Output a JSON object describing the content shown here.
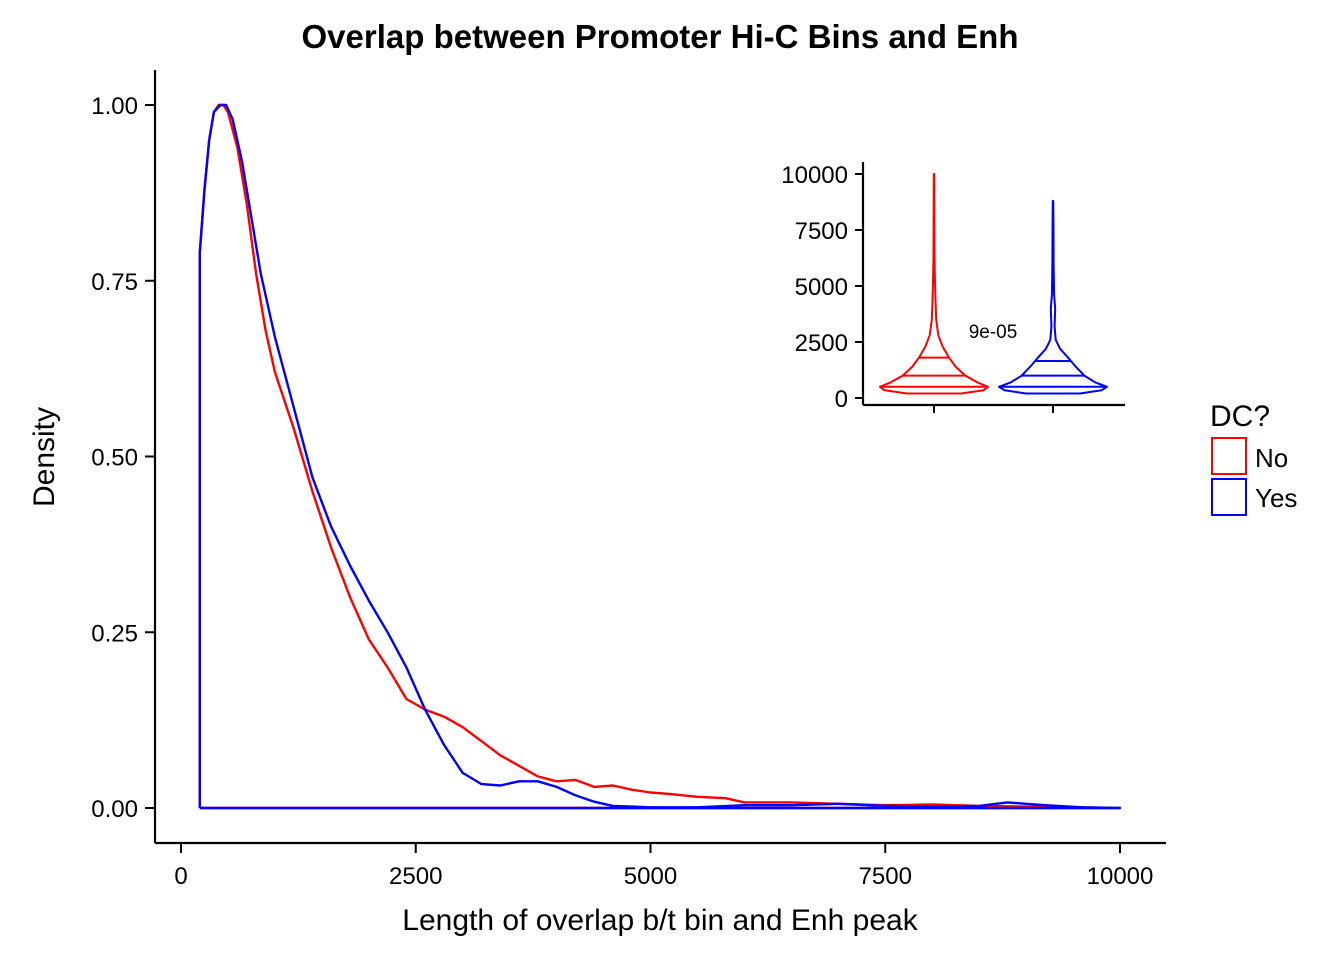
{
  "chart_data": [
    {
      "type": "line",
      "title": "Overlap between Promoter Hi-C Bins and Enh",
      "xlabel": "Length of overlap b/t bin and Enh peak",
      "ylabel": "Density",
      "xlim": [
        0,
        10000
      ],
      "ylim": [
        0,
        1.0
      ],
      "x_ticks": [
        "0",
        "2500",
        "5000",
        "7500",
        "10000"
      ],
      "y_ticks": [
        "0.00",
        "0.25",
        "0.50",
        "0.75",
        "1.00"
      ],
      "x_tick_values": [
        0,
        2500,
        5000,
        7500,
        10000
      ],
      "y_tick_values": [
        0,
        0.25,
        0.5,
        0.75,
        1.0
      ],
      "grid": false,
      "legend": {
        "title": "DC?",
        "placement": "right",
        "entries": [
          {
            "label": "No",
            "color": "#ff0000"
          },
          {
            "label": "Yes",
            "color": "#0000ff"
          }
        ]
      },
      "series": [
        {
          "name": "No",
          "color": "#ff0000",
          "points": [
            [
              200,
              0
            ],
            [
              200,
              0.79
            ],
            [
              250,
              0.88
            ],
            [
              300,
              0.95
            ],
            [
              350,
              0.99
            ],
            [
              400,
              1.0
            ],
            [
              450,
              1.0
            ],
            [
              500,
              0.99
            ],
            [
              600,
              0.94
            ],
            [
              700,
              0.86
            ],
            [
              800,
              0.76
            ],
            [
              900,
              0.68
            ],
            [
              1000,
              0.62
            ],
            [
              1200,
              0.54
            ],
            [
              1400,
              0.45
            ],
            [
              1600,
              0.37
            ],
            [
              1800,
              0.3
            ],
            [
              2000,
              0.24
            ],
            [
              2200,
              0.2
            ],
            [
              2400,
              0.155
            ],
            [
              2600,
              0.14
            ],
            [
              2800,
              0.13
            ],
            [
              3000,
              0.115
            ],
            [
              3200,
              0.095
            ],
            [
              3400,
              0.075
            ],
            [
              3600,
              0.06
            ],
            [
              3800,
              0.045
            ],
            [
              4000,
              0.038
            ],
            [
              4200,
              0.04
            ],
            [
              4400,
              0.03
            ],
            [
              4600,
              0.032
            ],
            [
              4800,
              0.026
            ],
            [
              5000,
              0.022
            ],
            [
              5200,
              0.02
            ],
            [
              5500,
              0.016
            ],
            [
              5800,
              0.014
            ],
            [
              6000,
              0.008
            ],
            [
              6500,
              0.008
            ],
            [
              7000,
              0.006
            ],
            [
              7500,
              0.004
            ],
            [
              8000,
              0.005
            ],
            [
              8500,
              0.003
            ],
            [
              9000,
              0.002
            ],
            [
              9500,
              0.001
            ],
            [
              10000,
              0.0
            ],
            [
              200,
              0.0
            ]
          ]
        },
        {
          "name": "Yes",
          "color": "#0000ff",
          "points": [
            [
              200,
              0
            ],
            [
              200,
              0.79
            ],
            [
              250,
              0.88
            ],
            [
              300,
              0.95
            ],
            [
              350,
              0.99
            ],
            [
              420,
              1.0
            ],
            [
              480,
              1.0
            ],
            [
              550,
              0.98
            ],
            [
              650,
              0.92
            ],
            [
              750,
              0.84
            ],
            [
              850,
              0.76
            ],
            [
              1000,
              0.67
            ],
            [
              1200,
              0.57
            ],
            [
              1400,
              0.47
            ],
            [
              1600,
              0.4
            ],
            [
              1800,
              0.345
            ],
            [
              2000,
              0.295
            ],
            [
              2200,
              0.25
            ],
            [
              2400,
              0.2
            ],
            [
              2600,
              0.14
            ],
            [
              2800,
              0.09
            ],
            [
              3000,
              0.05
            ],
            [
              3200,
              0.034
            ],
            [
              3400,
              0.032
            ],
            [
              3600,
              0.038
            ],
            [
              3800,
              0.038
            ],
            [
              4000,
              0.03
            ],
            [
              4200,
              0.018
            ],
            [
              4400,
              0.009
            ],
            [
              4600,
              0.003
            ],
            [
              5000,
              0.001
            ],
            [
              5500,
              0.001
            ],
            [
              6000,
              0.004
            ],
            [
              6500,
              0.004
            ],
            [
              7000,
              0.006
            ],
            [
              7500,
              0.003
            ],
            [
              8000,
              0.002
            ],
            [
              8500,
              0.003
            ],
            [
              8800,
              0.008
            ],
            [
              9200,
              0.004
            ],
            [
              9600,
              0.001
            ],
            [
              10000,
              0.0
            ],
            [
              200,
              0.0
            ]
          ]
        }
      ]
    },
    {
      "type": "violin",
      "ylim": [
        0,
        10000
      ],
      "y_ticks": [
        "0",
        "2500",
        "5000",
        "7500",
        "10000"
      ],
      "y_tick_values": [
        0,
        2500,
        5000,
        7500,
        10000
      ],
      "annotation": "9e-05",
      "series": [
        {
          "name": "No",
          "color": "#ff0000",
          "max": 10000,
          "quantiles": [
            500,
            1000,
            1800
          ],
          "half_width": [
            [
              200,
              0.5
            ],
            [
              350,
              0.92
            ],
            [
              500,
              1.0
            ],
            [
              700,
              0.8
            ],
            [
              1000,
              0.58
            ],
            [
              1400,
              0.4
            ],
            [
              1800,
              0.28
            ],
            [
              2300,
              0.16
            ],
            [
              2800,
              0.08
            ],
            [
              3500,
              0.04
            ],
            [
              4500,
              0.025
            ],
            [
              5500,
              0.015
            ],
            [
              6500,
              0.01
            ],
            [
              8000,
              0.008
            ],
            [
              10000,
              0.004
            ]
          ]
        },
        {
          "name": "Yes",
          "color": "#0000ff",
          "max": 8800,
          "quantiles": [
            500,
            1000,
            1650
          ],
          "half_width": [
            [
              200,
              0.5
            ],
            [
              350,
              0.9
            ],
            [
              500,
              1.0
            ],
            [
              700,
              0.78
            ],
            [
              1000,
              0.58
            ],
            [
              1400,
              0.42
            ],
            [
              1800,
              0.28
            ],
            [
              2200,
              0.13
            ],
            [
              2600,
              0.05
            ],
            [
              3200,
              0.03
            ],
            [
              4000,
              0.04
            ],
            [
              4600,
              0.02
            ],
            [
              6000,
              0.012
            ],
            [
              7500,
              0.01
            ],
            [
              8800,
              0.004
            ]
          ]
        }
      ]
    }
  ]
}
